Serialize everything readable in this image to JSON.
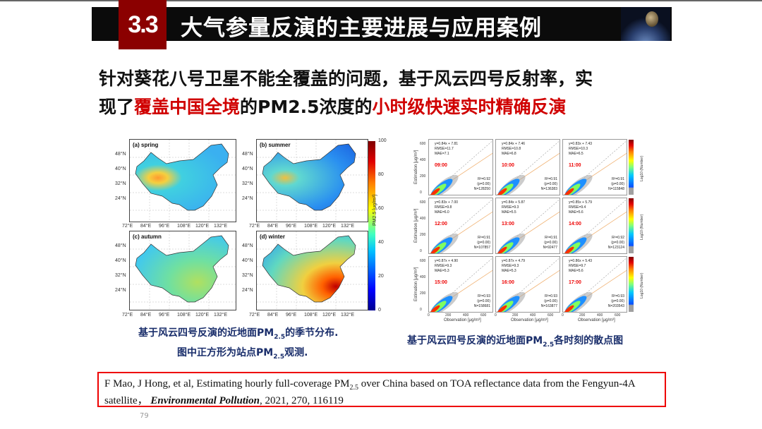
{
  "header": {
    "section_number": "3.3",
    "title": "大气参量反演的主要进展与应用案例"
  },
  "body": {
    "line1": "针对葵花八号卫星不能全覆盖的问题，基于风云四号反射率，实",
    "line2_parts": [
      "现了",
      "覆盖中国全境",
      "的PM2.5浓度的",
      "小时级快速实时精确反演"
    ]
  },
  "map_figure": {
    "panels": [
      {
        "label": "(a) spring"
      },
      {
        "label": "(b) summer"
      },
      {
        "label": "(c) autumn"
      },
      {
        "label": "(d) winter"
      }
    ],
    "lat_ticks": [
      "48°N",
      "40°N",
      "32°N",
      "24°N"
    ],
    "lon_ticks": [
      "72°E",
      "84°E",
      "96°E",
      "108°E",
      "120°E",
      "132°E"
    ],
    "colorbar_ticks": [
      "100",
      "80",
      "60",
      "40",
      "20",
      "0"
    ],
    "colorbar_label": "PM2.5 [μg/m³]"
  },
  "scatter_figure": {
    "ylabel": "Estimation [μg/m³]",
    "xlabel": "Observation [μg/m³]",
    "ticks": [
      "0",
      "200",
      "400",
      "600"
    ],
    "colorbar_label": "Log10 (Number)",
    "panels": [
      {
        "time": "09:00",
        "eq": "y=0.84x + 7.81",
        "rmse": "RMSE=11.7",
        "mae": "MAE=7.1",
        "r2": "R²=0.92",
        "p": "(p=0.00)",
        "n": "N=128250"
      },
      {
        "time": "10:00",
        "eq": "y=0.84x + 7.46",
        "rmse": "RMSE=10.8",
        "mae": "MAE=6.8",
        "r2": "R²=0.91",
        "p": "(p=0.00)",
        "n": "N=136383"
      },
      {
        "time": "11:00",
        "eq": "y=0.83x + 7.43",
        "rmse": "RMSE=10.3",
        "mae": "MAE=6.5",
        "r2": "R²=0.91",
        "p": "(p=0.00)",
        "n": "N=115848"
      },
      {
        "time": "12:00",
        "eq": "y=0.83x + 7.00",
        "rmse": "RMSE=9.8",
        "mae": "MAE=6.0",
        "r2": "R²=0.91",
        "p": "(p=0.00)",
        "n": "N=107857"
      },
      {
        "time": "13:00",
        "eq": "y=0.84x + 5.87",
        "rmse": "RMSE=9.3",
        "mae": "MAE=5.5",
        "r2": "R²=0.91",
        "p": "(p=0.00)",
        "n": "N=92477"
      },
      {
        "time": "14:00",
        "eq": "y=0.85x + 5.79",
        "rmse": "RMSE=9.4",
        "mae": "MAE=5.6",
        "r2": "R²=0.92",
        "p": "(p=0.00)",
        "n": "N=123124"
      },
      {
        "time": "15:00",
        "eq": "y=0.87x + 4.90",
        "rmse": "RMSE=9.3",
        "mae": "MAE=5.3",
        "r2": "R²=0.93",
        "p": "(p=0.00)",
        "n": "N=158681"
      },
      {
        "time": "16:00",
        "eq": "y=0.87x + 4.79",
        "rmse": "RMSE=9.3",
        "mae": "MAE=5.3",
        "r2": "R²=0.93",
        "p": "(p=0.00)",
        "n": "N=163877"
      },
      {
        "time": "17:00",
        "eq": "y=0.86x + 5.43",
        "rmse": "RMSE=9.7",
        "mae": "MAE=5.6",
        "r2": "R²=0.93",
        "p": "(p=0.00)",
        "n": "N=203543"
      }
    ]
  },
  "captions": {
    "left_line1": "基于风云四号反演的近地面PM2.5的季节分布.",
    "left_line2": "图中正方形为站点PM2.5观测.",
    "right": "基于风云四号反演的近地面PM2.5各时刻的散点图"
  },
  "reference": {
    "text_before": "F Mao, J Hong, et al, Estimating hourly full-coverage PM2.5 over China based on TOA reflectance data from the Fengyun-4A satellite，",
    "journal": "Environmental Pollution",
    "text_after": ", 2021, 270, 116119"
  },
  "page_number": "79"
}
